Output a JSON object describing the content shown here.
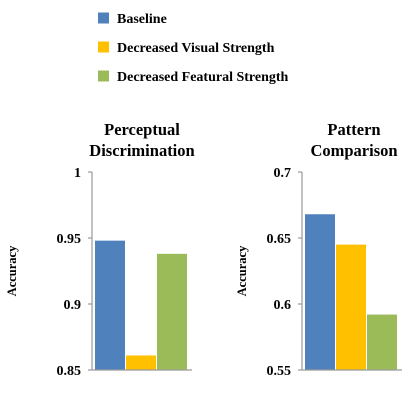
{
  "chart_data": {
    "legend": [
      {
        "name": "Baseline",
        "color": "#4f81bd"
      },
      {
        "name": "Decreased Visual Strength",
        "color": "#ffc000"
      },
      {
        "name": "Decreased Featural Strength",
        "color": "#9bbb59"
      }
    ],
    "charts": [
      {
        "type": "bar",
        "title": [
          "Perceptual",
          "Discrimination"
        ],
        "ylabel": "Accuracy",
        "ylim": [
          0.85,
          1
        ],
        "yticks": [
          "0.85",
          "0.9",
          "0.95",
          "1"
        ],
        "ytick_values": [
          0.85,
          0.9,
          0.95,
          1
        ],
        "series": [
          {
            "name": "Baseline",
            "value": 0.948
          },
          {
            "name": "Decreased Visual Strength",
            "value": 0.861
          },
          {
            "name": "Decreased Featural Strength",
            "value": 0.938
          }
        ]
      },
      {
        "type": "bar",
        "title": [
          "Pattern",
          "Comparison"
        ],
        "ylabel": "Accuracy",
        "ylim": [
          0.55,
          0.7
        ],
        "yticks": [
          "0.55",
          "0.6",
          "0.65",
          "0.7"
        ],
        "ytick_values": [
          0.55,
          0.6,
          0.65,
          0.7
        ],
        "series": [
          {
            "name": "Baseline",
            "value": 0.668
          },
          {
            "name": "Decreased Visual Strength",
            "value": 0.645
          },
          {
            "name": "Decreased Featural Strength",
            "value": 0.592
          }
        ]
      }
    ]
  }
}
